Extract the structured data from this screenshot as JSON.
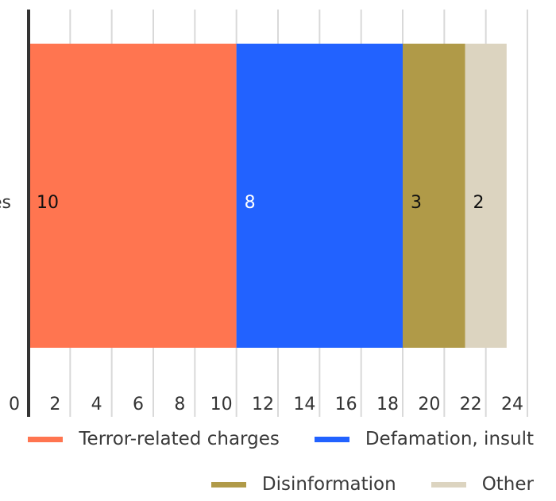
{
  "chart_data": {
    "type": "bar",
    "orientation": "horizontal",
    "stacked": true,
    "categories": [
      "es"
    ],
    "series": [
      {
        "name": "Terror-related charges",
        "values": [
          10
        ],
        "color": "#FF7550"
      },
      {
        "name": "Defamation, insult",
        "values": [
          8
        ],
        "color": "#2262FF"
      },
      {
        "name": "Disinformation",
        "values": [
          3
        ],
        "color": "#B09A48"
      },
      {
        "name": "Other",
        "values": [
          2
        ],
        "color": "#DCD4C0"
      }
    ],
    "data_labels": [
      "10",
      "8",
      "3",
      "2"
    ],
    "xticks": [
      "0",
      "2",
      "4",
      "6",
      "8",
      "10",
      "12",
      "14",
      "16",
      "18",
      "20",
      "22",
      "24"
    ],
    "xlim": [
      0,
      24
    ],
    "grid": true,
    "legend": "bottom",
    "title": "",
    "xlabel": "",
    "ylabel": ""
  }
}
